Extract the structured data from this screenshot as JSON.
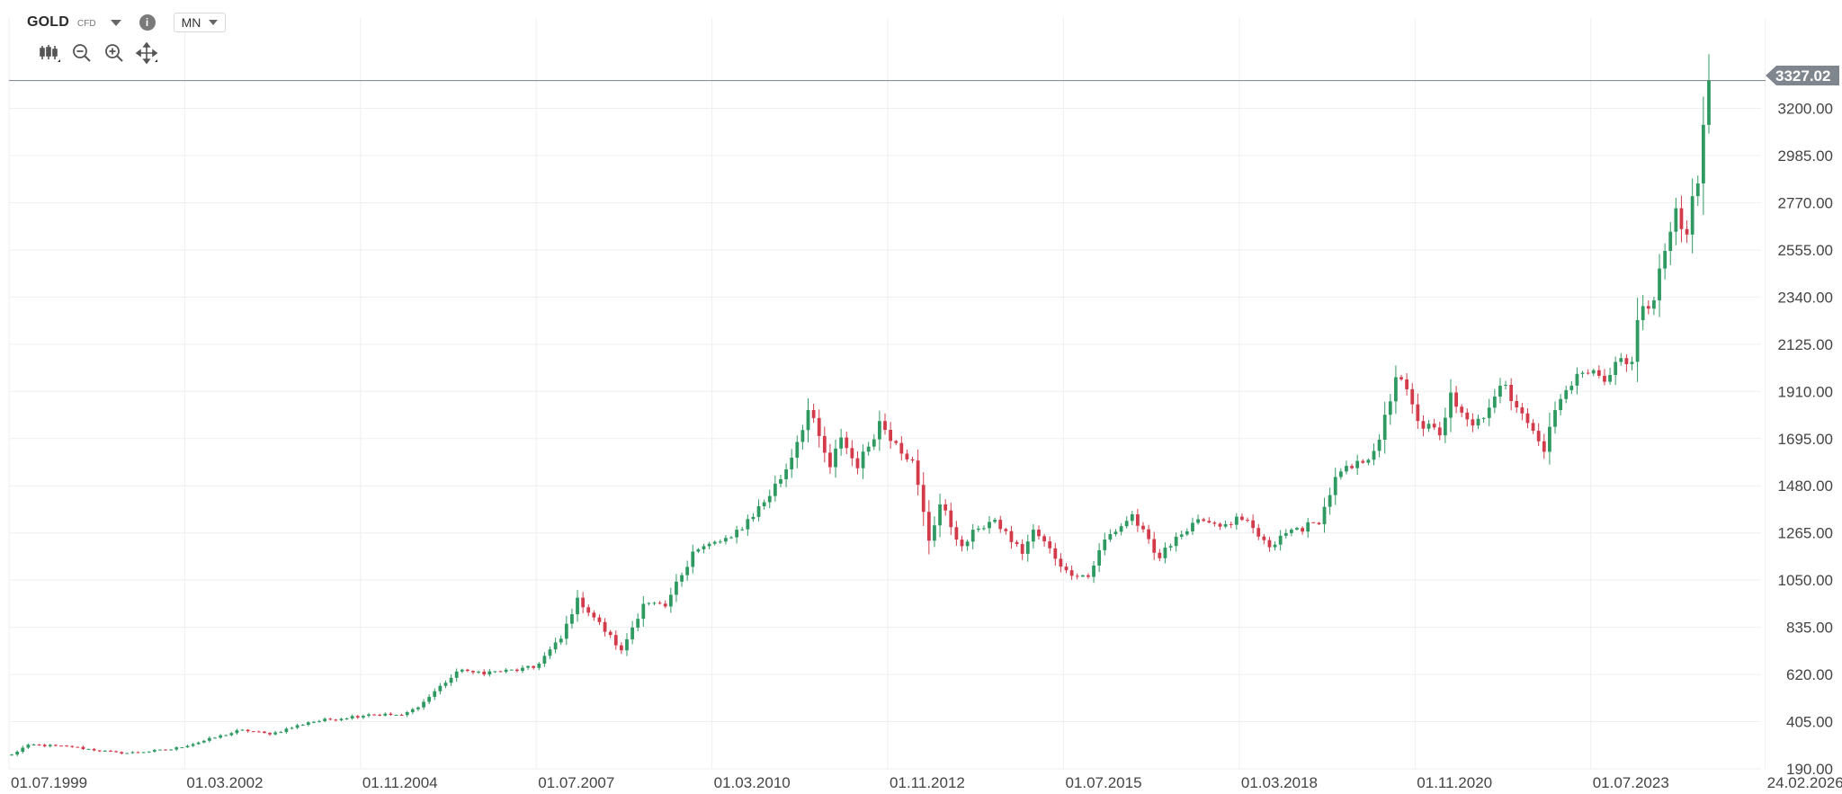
{
  "toolbar": {
    "symbol": "GOLD",
    "symbol_type": "CFD",
    "info_glyph": "i",
    "timeframe": "MN",
    "icons": [
      "chart-type-icon",
      "zoom-out-icon",
      "zoom-in-icon",
      "move-icon"
    ]
  },
  "colors": {
    "up": "#2e9a62",
    "down": "#d33a4a",
    "grid": "#efefef",
    "price_line": "#8a9097",
    "price_tag_bg": "#7f868d"
  },
  "chart_data": {
    "type": "candlestick",
    "title": "",
    "timeframe": "monthly",
    "y_ticks": [
      "3200.00",
      "2985.00",
      "2770.00",
      "2555.00",
      "2340.00",
      "2125.00",
      "1910.00",
      "1695.00",
      "1480.00",
      "1265.00",
      "1050.00",
      "835.00",
      "620.00",
      "405.00",
      "190.00"
    ],
    "ylim": [
      190,
      3440
    ],
    "x_ticks": [
      "01.07.1999",
      "01.03.2002",
      "01.11.2004",
      "01.07.2007",
      "01.03.2010",
      "01.11.2012",
      "01.07.2015",
      "01.03.2018",
      "01.11.2020",
      "01.07.2023",
      "24.02.2026"
    ],
    "xlim": [
      "1999-07",
      "2026-02"
    ],
    "current_price": "3327.02",
    "current_price_value": 3327.02,
    "monthly_close_anchors": [
      [
        "1999-07",
        255
      ],
      [
        "1999-10",
        300
      ],
      [
        "2000-06",
        290
      ],
      [
        "2001-03",
        260
      ],
      [
        "2001-12",
        278
      ],
      [
        "2002-06",
        318
      ],
      [
        "2003-01",
        368
      ],
      [
        "2003-06",
        347
      ],
      [
        "2004-01",
        402
      ],
      [
        "2004-12",
        438
      ],
      [
        "2005-06",
        435
      ],
      [
        "2005-09",
        470
      ],
      [
        "2006-01",
        568
      ],
      [
        "2006-05",
        642
      ],
      [
        "2006-07",
        630
      ],
      [
        "2006-12",
        632
      ],
      [
        "2007-06",
        650
      ],
      [
        "2007-11",
        783
      ],
      [
        "2008-02",
        970
      ],
      [
        "2008-05",
        880
      ],
      [
        "2008-10",
        730
      ],
      [
        "2009-02",
        942
      ],
      [
        "2009-06",
        930
      ],
      [
        "2009-11",
        1180
      ],
      [
        "2010-06",
        1245
      ],
      [
        "2010-12",
        1405
      ],
      [
        "2011-04",
        1555
      ],
      [
        "2011-08",
        1825
      ],
      [
        "2011-12",
        1565
      ],
      [
        "2012-02",
        1700
      ],
      [
        "2012-05",
        1560
      ],
      [
        "2012-09",
        1775
      ],
      [
        "2012-12",
        1675
      ],
      [
        "2013-03",
        1595
      ],
      [
        "2013-06",
        1230
      ],
      [
        "2013-08",
        1395
      ],
      [
        "2013-12",
        1205
      ],
      [
        "2014-03",
        1285
      ],
      [
        "2014-06",
        1325
      ],
      [
        "2014-11",
        1170
      ],
      [
        "2015-01",
        1280
      ],
      [
        "2015-07",
        1095
      ],
      [
        "2015-11",
        1065
      ],
      [
        "2016-02",
        1235
      ],
      [
        "2016-06",
        1320
      ],
      [
        "2016-07",
        1350
      ],
      [
        "2016-11",
        1175
      ],
      [
        "2016-12",
        1150
      ],
      [
        "2017-03",
        1248
      ],
      [
        "2017-08",
        1320
      ],
      [
        "2017-12",
        1305
      ],
      [
        "2018-03",
        1325
      ],
      [
        "2018-08",
        1200
      ],
      [
        "2018-12",
        1280
      ],
      [
        "2019-05",
        1305
      ],
      [
        "2019-08",
        1520
      ],
      [
        "2020-01",
        1585
      ],
      [
        "2020-04",
        1690
      ],
      [
        "2020-07",
        1975
      ],
      [
        "2020-08",
        1965
      ],
      [
        "2020-11",
        1775
      ],
      [
        "2021-03",
        1710
      ],
      [
        "2021-05",
        1905
      ],
      [
        "2021-09",
        1755
      ],
      [
        "2022-03",
        1940
      ],
      [
        "2022-06",
        1810
      ],
      [
        "2022-10",
        1635
      ],
      [
        "2022-12",
        1825
      ],
      [
        "2023-04",
        1990
      ],
      [
        "2023-10",
        1985
      ],
      [
        "2023-12",
        2062
      ],
      [
        "2024-02",
        2045
      ],
      [
        "2024-03",
        2235
      ],
      [
        "2024-06",
        2325
      ],
      [
        "2024-10",
        2745
      ],
      [
        "2024-11",
        2650
      ],
      [
        "2024-12",
        2625
      ],
      [
        "2025-01",
        2800
      ],
      [
        "2025-02",
        2858
      ],
      [
        "2025-03",
        3125
      ],
      [
        "2025-04",
        3327
      ]
    ]
  }
}
